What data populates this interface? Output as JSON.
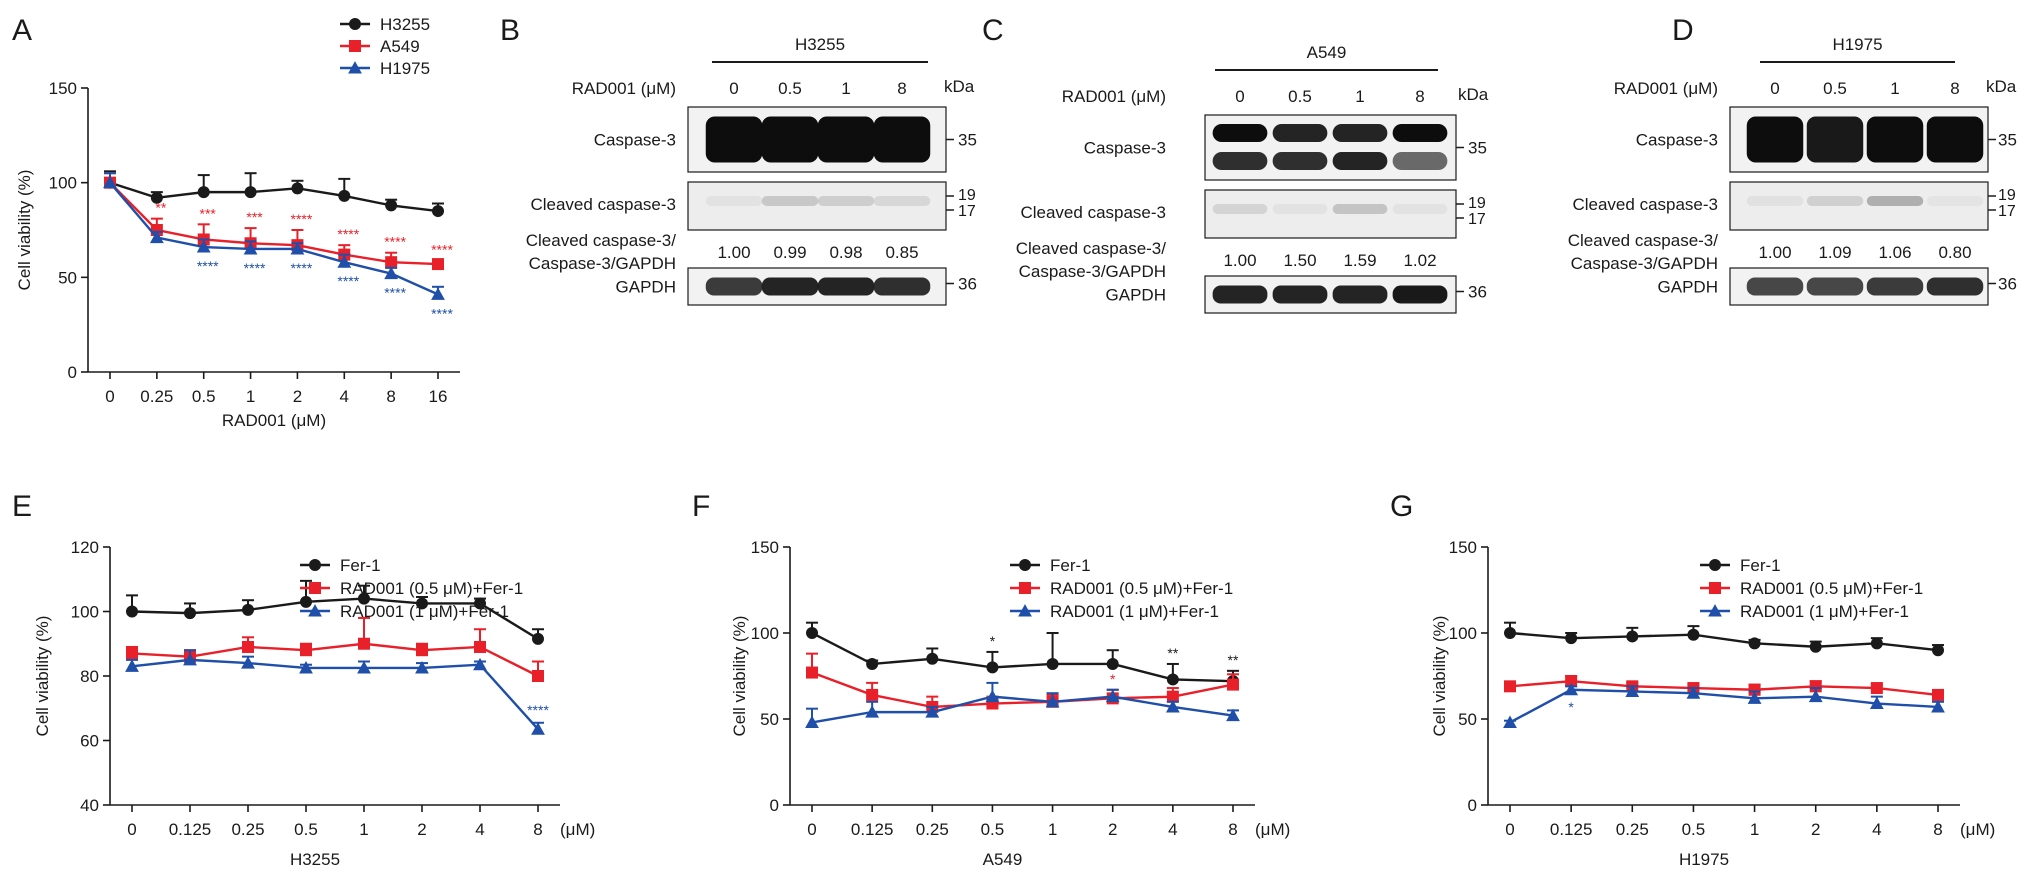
{
  "colors": {
    "black": "#1a1a1a",
    "red": "#e8202a",
    "blue": "#1f4fa8"
  },
  "chart_data": [
    {
      "id": "A",
      "panel_label": "A",
      "type": "line",
      "categories": [
        "0",
        "0.25",
        "0.5",
        "1",
        "2",
        "4",
        "8",
        "16"
      ],
      "xlabel": "RAD001 (μM)",
      "ylabel": "Cell viability (%)",
      "ylim": [
        0,
        150
      ],
      "yticks": [
        0,
        50,
        100,
        150
      ],
      "x_unit": "",
      "cell_line": "",
      "legend_position": "top-right",
      "series": [
        {
          "name": "H3255",
          "color": "#1a1a1a",
          "marker": "circle",
          "values": [
            100,
            92,
            95,
            95,
            97,
            93,
            88,
            85
          ],
          "err": [
            6,
            3,
            9,
            10,
            4,
            9,
            3,
            4
          ],
          "stars": [
            "",
            "",
            "",
            "",
            "",
            "",
            "",
            ""
          ]
        },
        {
          "name": "A549",
          "color": "#e8202a",
          "marker": "square",
          "values": [
            100,
            75,
            70,
            68,
            67,
            62,
            58,
            57
          ],
          "err": [
            5,
            6,
            8,
            8,
            8,
            5,
            5,
            2
          ],
          "stars": [
            "",
            "**",
            "***",
            "***",
            "****",
            "****",
            "****",
            "****"
          ]
        },
        {
          "name": "H1975",
          "color": "#1f4fa8",
          "marker": "triangle",
          "values": [
            100,
            71,
            66,
            65,
            65,
            58,
            52,
            41
          ],
          "err": [
            5,
            3,
            4,
            4,
            3,
            4,
            3,
            4
          ],
          "stars": [
            "",
            "",
            "****",
            "****",
            "****",
            "****",
            "****",
            "****"
          ]
        }
      ]
    },
    {
      "id": "E",
      "panel_label": "E",
      "type": "line",
      "categories": [
        "0",
        "0.125",
        "0.25",
        "0.5",
        "1",
        "2",
        "4",
        "8"
      ],
      "xlabel": "",
      "ylabel": "Cell viability (%)",
      "ylim": [
        40,
        120
      ],
      "yticks": [
        40,
        60,
        80,
        100,
        120
      ],
      "x_unit": "(μM)",
      "cell_line": "H3255",
      "legend_position": "top-left",
      "series": [
        {
          "name": "Fer-1",
          "color": "#1a1a1a",
          "marker": "circle",
          "values": [
            100,
            99.5,
            100.5,
            103,
            104,
            102.5,
            102.5,
            91.5
          ],
          "err": [
            5,
            3,
            3,
            6.5,
            4,
            2,
            1.5,
            3
          ],
          "stars": [
            "",
            "",
            "",
            "",
            "",
            "",
            "",
            ""
          ]
        },
        {
          "name": "RAD001 (0.5 μM)+Fer-1",
          "color": "#e8202a",
          "marker": "square",
          "values": [
            87,
            86,
            89,
            88,
            90,
            88,
            89,
            80
          ],
          "err": [
            2,
            2,
            3,
            2,
            8,
            2,
            5.5,
            4.5
          ],
          "stars": [
            "",
            "",
            "",
            "",
            "",
            "",
            "",
            ""
          ]
        },
        {
          "name": "RAD001 (1 μM)+Fer-1",
          "color": "#1f4fa8",
          "marker": "triangle",
          "values": [
            83,
            85,
            84,
            82.5,
            82.5,
            82.5,
            83.5,
            63.5
          ],
          "err": [
            2,
            3,
            2,
            1,
            2,
            1.5,
            1,
            2
          ],
          "stars": [
            "",
            "",
            "",
            "",
            "",
            "",
            "",
            "****"
          ]
        }
      ]
    },
    {
      "id": "F",
      "panel_label": "F",
      "type": "line",
      "categories": [
        "0",
        "0.125",
        "0.25",
        "0.5",
        "1",
        "2",
        "4",
        "8"
      ],
      "xlabel": "",
      "ylabel": "Cell viability (%)",
      "ylim": [
        0,
        150
      ],
      "yticks": [
        0,
        50,
        100,
        150
      ],
      "x_unit": "(μM)",
      "cell_line": "A549",
      "legend_position": "top-left",
      "series": [
        {
          "name": "Fer-1",
          "color": "#1a1a1a",
          "marker": "circle",
          "values": [
            100,
            82,
            85,
            80,
            82,
            82,
            73,
            72
          ],
          "err": [
            6,
            2,
            6,
            9,
            18,
            8,
            9,
            6
          ],
          "stars": [
            "",
            "",
            "",
            "*",
            "",
            "",
            "**",
            "**"
          ]
        },
        {
          "name": "RAD001 (0.5 μM)+Fer-1",
          "color": "#e8202a",
          "marker": "square",
          "values": [
            77,
            64,
            57,
            59,
            60,
            62,
            63,
            70
          ],
          "err": [
            11,
            7,
            6,
            4,
            4,
            5,
            5,
            6
          ],
          "stars": [
            "",
            "",
            "",
            "",
            "",
            "*",
            "",
            ""
          ]
        },
        {
          "name": "RAD001 (1 μM)+Fer-1",
          "color": "#1f4fa8",
          "marker": "triangle",
          "values": [
            48,
            54,
            54,
            63,
            60,
            63,
            57,
            52
          ],
          "err": [
            8,
            6,
            3,
            8,
            5,
            4,
            3,
            3
          ],
          "stars": [
            "",
            "",
            "",
            "",
            "",
            "",
            "",
            ""
          ]
        }
      ]
    },
    {
      "id": "G",
      "panel_label": "G",
      "type": "line",
      "categories": [
        "0",
        "0.125",
        "0.25",
        "0.5",
        "1",
        "2",
        "4",
        "8"
      ],
      "xlabel": "",
      "ylabel": "Cell viability (%)",
      "ylim": [
        0,
        150
      ],
      "yticks": [
        0,
        50,
        100,
        150
      ],
      "x_unit": "(μM)",
      "cell_line": "H1975",
      "legend_position": "top-left",
      "series": [
        {
          "name": "Fer-1",
          "color": "#1a1a1a",
          "marker": "circle",
          "values": [
            100,
            97,
            98,
            99,
            94,
            92,
            94,
            90
          ],
          "err": [
            6,
            3,
            5,
            5,
            2,
            3,
            3,
            3
          ],
          "stars": [
            "",
            "",
            "",
            "",
            "",
            "",
            "",
            ""
          ]
        },
        {
          "name": "RAD001 (0.5 μM)+Fer-1",
          "color": "#e8202a",
          "marker": "square",
          "values": [
            69,
            72,
            69,
            68,
            67,
            69,
            68,
            64
          ],
          "err": [
            2,
            3,
            2,
            2,
            3,
            3,
            2,
            2
          ],
          "stars": [
            "",
            "",
            "",
            "",
            "",
            "",
            "",
            ""
          ]
        },
        {
          "name": "RAD001 (1 μM)+Fer-1",
          "color": "#1f4fa8",
          "marker": "triangle",
          "values": [
            48,
            67,
            66,
            65,
            62,
            63,
            59,
            57
          ],
          "err": [
            1,
            2,
            3,
            3,
            4,
            5,
            4,
            3
          ],
          "stars": [
            "",
            "*",
            "",
            "",
            "",
            "",
            "",
            ""
          ]
        }
      ]
    }
  ],
  "blots": [
    {
      "panel_label": "B",
      "cell_line": "H3255",
      "treatment_label": "RAD001 (μM)",
      "doses": [
        "0",
        "0.5",
        "1",
        "8"
      ],
      "kda_label": "kDa",
      "caspase_label": "Caspase-3",
      "cleaved_label": "Cleaved caspase-3",
      "ratio_label_line1": "Cleaved caspase-3/",
      "ratio_label_line2": "Caspase-3/GAPDH",
      "gapdh_label": "GAPDH",
      "ratios": [
        "1.00",
        "0.99",
        "0.98",
        "0.85"
      ],
      "mw_caspase": "35",
      "mw_cleaved_1": "19",
      "mw_cleaved_2": "17",
      "mw_gapdh": "36"
    },
    {
      "panel_label": "C",
      "cell_line": "A549",
      "treatment_label": "RAD001 (μM)",
      "doses": [
        "0",
        "0.5",
        "1",
        "8"
      ],
      "kda_label": "kDa",
      "caspase_label": "Caspase-3",
      "cleaved_label": "Cleaved caspase-3",
      "ratio_label_line1": "Cleaved caspase-3/",
      "ratio_label_line2": "Caspase-3/GAPDH",
      "gapdh_label": "GAPDH",
      "ratios": [
        "1.00",
        "1.50",
        "1.59",
        "1.02"
      ],
      "mw_caspase": "35",
      "mw_cleaved_1": "19",
      "mw_cleaved_2": "17",
      "mw_gapdh": "36"
    },
    {
      "panel_label": "D",
      "cell_line": "H1975",
      "treatment_label": "RAD001 (μM)",
      "doses": [
        "0",
        "0.5",
        "1",
        "8"
      ],
      "kda_label": "kDa",
      "caspase_label": "Caspase-3",
      "cleaved_label": "Cleaved caspase-3",
      "ratio_label_line1": "Cleaved caspase-3/",
      "ratio_label_line2": "Caspase-3/GAPDH",
      "gapdh_label": "GAPDH",
      "ratios": [
        "1.00",
        "1.09",
        "1.06",
        "0.80"
      ],
      "mw_caspase": "35",
      "mw_cleaved_1": "19",
      "mw_cleaved_2": "17",
      "mw_gapdh": "36"
    }
  ]
}
